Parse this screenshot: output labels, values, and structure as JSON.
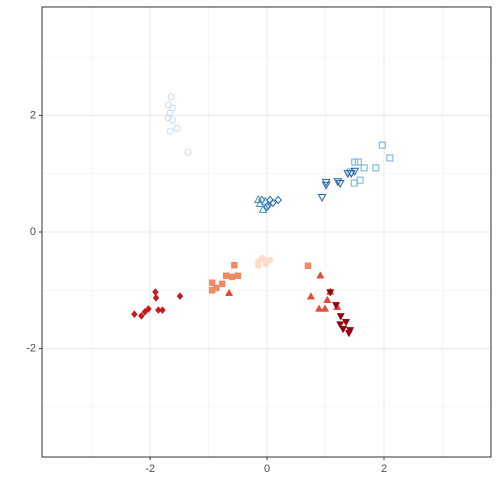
{
  "chart_data": {
    "type": "scatter",
    "xlim": [
      -3.85,
      3.83
    ],
    "ylim": [
      -3.86,
      3.86
    ],
    "xticks": [
      -2,
      0,
      2
    ],
    "yticks": [
      -2,
      0,
      2
    ],
    "grid": true,
    "minor_grid": true,
    "series": [
      {
        "color": "#c6dbef",
        "shape": "circle",
        "filled": false,
        "x": [
          -1.64,
          -1.69,
          -1.62,
          -1.66,
          -1.62,
          -1.54,
          -1.66,
          -1.35,
          -1.69
        ],
        "y": [
          2.32,
          2.18,
          2.13,
          2.04,
          1.92,
          1.78,
          1.73,
          1.37,
          1.96
        ]
      },
      {
        "color": "#6baed6",
        "shape": "square",
        "filled": false,
        "x": [
          1.97,
          2.1,
          1.5,
          1.56,
          1.66,
          1.59,
          1.49,
          1.42,
          1.86
        ],
        "y": [
          1.49,
          1.27,
          1.2,
          1.2,
          1.1,
          0.89,
          0.84,
          1.03,
          1.1
        ]
      },
      {
        "color": "#2166ac",
        "shape": "triangle-down",
        "filled": false,
        "x": [
          0.94,
          1.01,
          1.01,
          1.21,
          1.25,
          1.38,
          1.5,
          1.44
        ],
        "y": [
          0.6,
          0.81,
          0.86,
          0.87,
          0.84,
          1.01,
          1.05,
          1.01
        ]
      },
      {
        "color": "#2166ac",
        "shape": "diamond",
        "filled": false,
        "x": [
          -0.09,
          0.02,
          0.1,
          0.19,
          0.05,
          0.0
        ],
        "y": [
          0.55,
          0.46,
          0.5,
          0.55,
          0.55,
          0.43
        ]
      },
      {
        "color": "#4393c3",
        "shape": "triangle-up",
        "filled": false,
        "x": [
          -0.15,
          -0.07,
          -0.12,
          -0.03
        ],
        "y": [
          0.55,
          0.38,
          0.48,
          0.52
        ]
      },
      {
        "color": "#fddbc7",
        "shape": "circle",
        "filled": true,
        "x": [
          -0.09,
          -0.15,
          -0.05,
          0.05,
          -0.15,
          -0.02
        ],
        "y": [
          -0.45,
          -0.51,
          -0.48,
          -0.48,
          -0.58,
          -0.55
        ]
      },
      {
        "color": "#ef8a62",
        "shape": "square",
        "filled": true,
        "x": [
          -0.56,
          -0.7,
          -0.6,
          -0.5,
          -0.77,
          -0.94,
          -0.87,
          -0.94,
          0.7
        ],
        "y": [
          -0.57,
          -0.75,
          -0.77,
          -0.75,
          -0.89,
          -0.87,
          -0.96,
          -1.0,
          -0.58
        ]
      },
      {
        "color": "#e34a33",
        "shape": "triangle-up",
        "filled": true,
        "x": [
          0.91,
          0.75,
          1.03,
          0.89,
          0.99,
          1.2,
          1.08,
          -0.65
        ],
        "y": [
          -0.75,
          -1.11,
          -1.17,
          -1.32,
          -1.32,
          -1.29,
          -1.03,
          -1.05
        ]
      },
      {
        "color": "#99000d",
        "shape": "triangle-down",
        "filled": true,
        "x": [
          1.08,
          1.18,
          1.26,
          1.35,
          1.25,
          1.4,
          1.3,
          1.42
        ],
        "y": [
          -1.03,
          -1.25,
          -1.44,
          -1.54,
          -1.58,
          -1.73,
          -1.66,
          -1.68
        ]
      },
      {
        "color": "#cb181d",
        "shape": "diamond",
        "filled": true,
        "x": [
          -2.27,
          -2.15,
          -2.09,
          -2.03,
          -1.9,
          -1.91,
          -1.86,
          -1.79,
          -1.49
        ],
        "y": [
          -1.41,
          -1.44,
          -1.37,
          -1.32,
          -1.13,
          -1.03,
          -1.34,
          -1.34,
          -1.1
        ]
      }
    ]
  }
}
